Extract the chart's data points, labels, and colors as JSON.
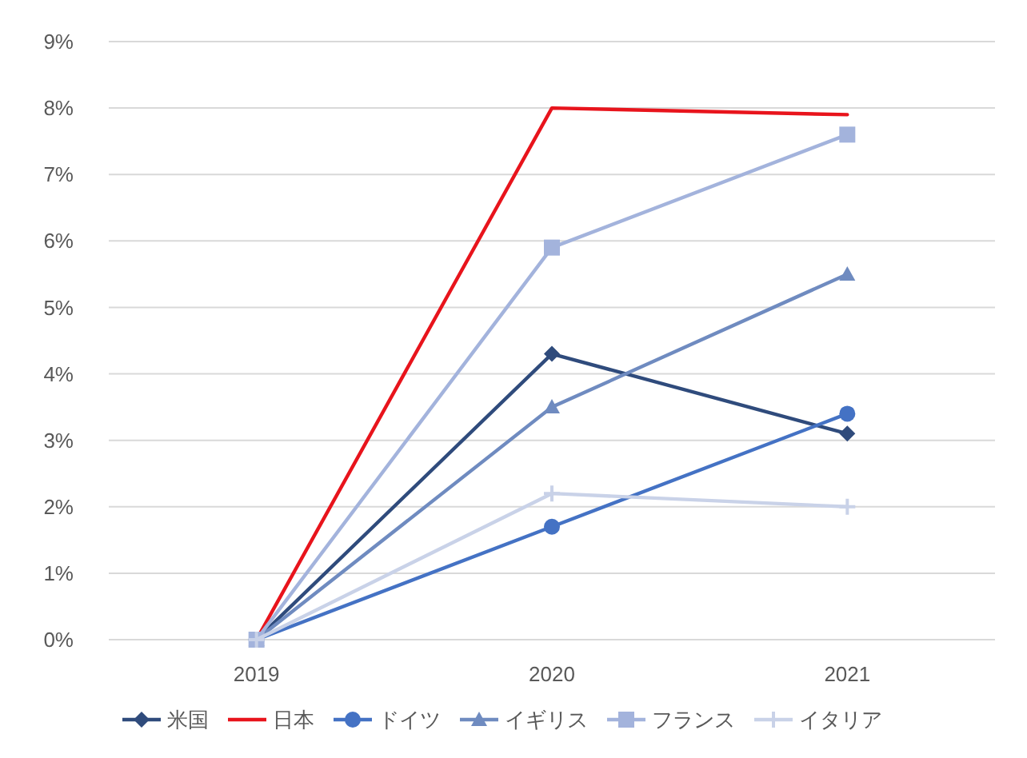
{
  "chart_data": {
    "type": "line",
    "categories": [
      "2019",
      "2020",
      "2021"
    ],
    "series": [
      {
        "name": "米国",
        "color": "#2f4b7c",
        "marker": "diamond",
        "values": [
          0,
          4.3,
          3.1
        ]
      },
      {
        "name": "日本",
        "color": "#e8141c",
        "marker": "none",
        "values": [
          0,
          8.0,
          7.9
        ]
      },
      {
        "name": "ドイツ",
        "color": "#4472c4",
        "marker": "circle",
        "values": [
          0,
          1.7,
          3.4
        ]
      },
      {
        "name": "イギリス",
        "color": "#6f8bc0",
        "marker": "triangle",
        "values": [
          0,
          3.5,
          5.5
        ]
      },
      {
        "name": "フランス",
        "color": "#a3b3dc",
        "marker": "square",
        "values": [
          0,
          5.9,
          7.6
        ]
      },
      {
        "name": "イタリア",
        "color": "#c9d2e8",
        "marker": "cross",
        "values": [
          0,
          2.2,
          2.0
        ]
      }
    ],
    "ylim": [
      0,
      9
    ],
    "yticks": [
      {
        "value": 0,
        "label": "0%"
      },
      {
        "value": 1,
        "label": "1%"
      },
      {
        "value": 2,
        "label": "2%"
      },
      {
        "value": 3,
        "label": "3%"
      },
      {
        "value": 4,
        "label": "4%"
      },
      {
        "value": 5,
        "label": "5%"
      },
      {
        "value": 6,
        "label": "6%"
      },
      {
        "value": 7,
        "label": "7%"
      },
      {
        "value": 8,
        "label": "8%"
      },
      {
        "value": 9,
        "label": "9%"
      }
    ],
    "grid": "y",
    "legend": "bottom",
    "line_style": "solid"
  }
}
